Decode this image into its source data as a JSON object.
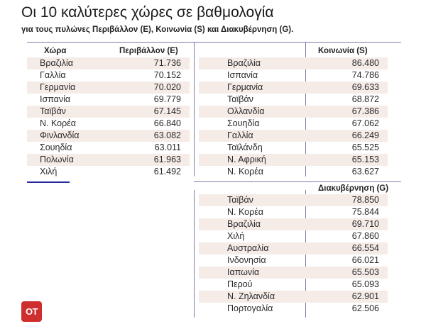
{
  "title": "Οι 10 καλύτερες χώρες σε βαθμολογία",
  "subtitle": "για τους πυλώνες Περιβάλλον (E), Κοινωνία (S) και Διακυβέρνηση (G).",
  "logo_text": "OT",
  "colors": {
    "row_shade": "#f5ece8",
    "logo_bg": "#cf2e2e",
    "divider": "#7b7ba8",
    "accent_line": "#2a2a9a"
  },
  "chart_data": [
    {
      "type": "table",
      "headers": [
        "Χώρα",
        "Περιβάλλον (E)"
      ],
      "rows": [
        [
          "Βραζιλία",
          "71.736"
        ],
        [
          "Γαλλία",
          "70.152"
        ],
        [
          "Γερμανία",
          "70.020"
        ],
        [
          "Ισπανία",
          "69.779"
        ],
        [
          "Ταϊβάν",
          "67.145"
        ],
        [
          "Ν. Κορέα",
          "66.840"
        ],
        [
          "Φινλανδία",
          "63.082"
        ],
        [
          "Σουηδία",
          "63.011"
        ],
        [
          "Πολωνία",
          "61.963"
        ],
        [
          "Χιλή",
          "61.492"
        ]
      ]
    },
    {
      "type": "table",
      "headers": [
        "",
        "Κοινωνία (S)"
      ],
      "rows": [
        [
          "Βραζιλία",
          "86.480"
        ],
        [
          "Ισπανία",
          "74.786"
        ],
        [
          "Γερμανία",
          "69.633"
        ],
        [
          "Ταϊβάν",
          "68.872"
        ],
        [
          "Ολλανδία",
          "67.386"
        ],
        [
          "Σουηδία",
          "67.062"
        ],
        [
          "Γαλλία",
          "66.249"
        ],
        [
          "Ταϊλάνδη",
          "65.525"
        ],
        [
          "Ν. Αφρική",
          "65.153"
        ],
        [
          "Ν. Κορέα",
          "63.627"
        ]
      ]
    },
    {
      "type": "table",
      "headers": [
        "",
        "Διακυβέρνηση (G)"
      ],
      "rows": [
        [
          "Ταϊβάν",
          "78.850"
        ],
        [
          "Ν. Κορέα",
          "75.844"
        ],
        [
          "Βραζιλία",
          "69.710"
        ],
        [
          "Χιλή",
          "67.860"
        ],
        [
          "Αυστραλία",
          "66.554"
        ],
        [
          "Ινδονησία",
          "66.021"
        ],
        [
          "Ιαπωνία",
          "65.503"
        ],
        [
          "Περού",
          "65.093"
        ],
        [
          "Ν. Ζηλανδία",
          "62.901"
        ],
        [
          "Πορτογαλία",
          "62.506"
        ]
      ]
    }
  ]
}
